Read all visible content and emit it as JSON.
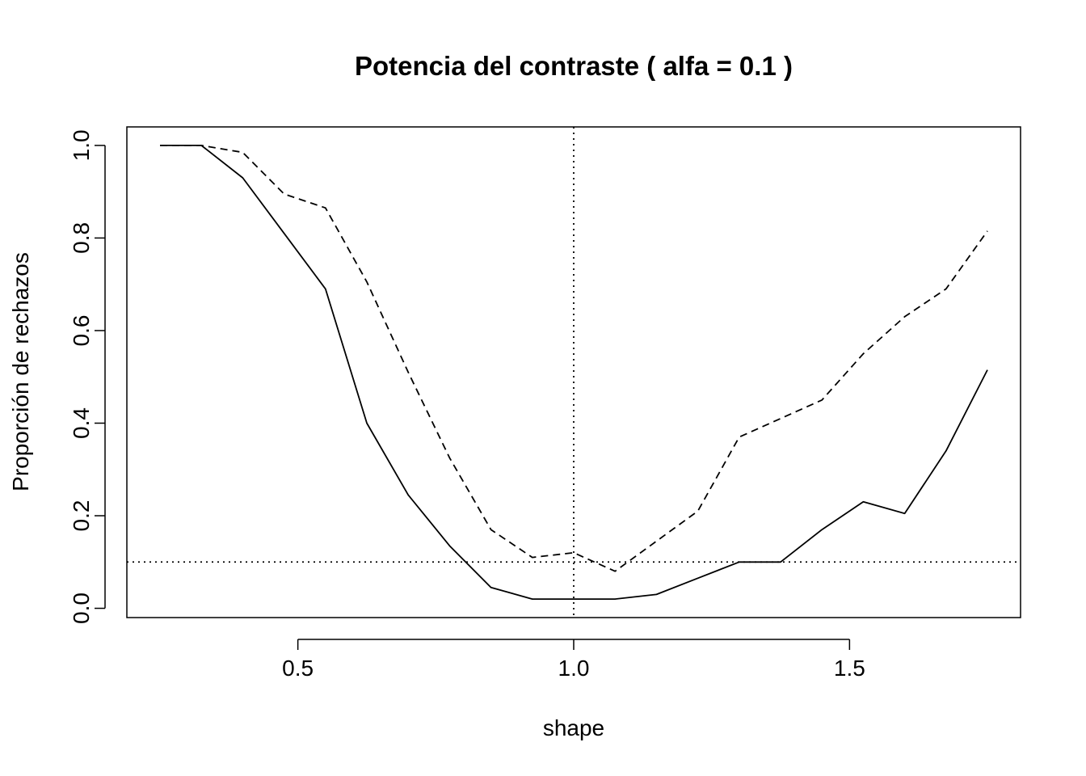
{
  "chart_data": {
    "type": "line",
    "title": "Potencia del contraste ( alfa = 0.1 )",
    "xlabel": "shape",
    "ylabel": "Proporción de rechazos",
    "xlim": [
      0.19,
      1.81
    ],
    "ylim": [
      -0.02,
      1.04
    ],
    "x_ticks": [
      0.5,
      1.0,
      1.5
    ],
    "x_tick_labels": [
      "0.5",
      "1.0",
      "1.5"
    ],
    "y_ticks": [
      0.0,
      0.2,
      0.4,
      0.6,
      0.8,
      1.0
    ],
    "y_tick_labels": [
      "0.0",
      "0.2",
      "0.4",
      "0.6",
      "0.8",
      "1.0"
    ],
    "grid": false,
    "x": [
      0.25,
      0.325,
      0.4,
      0.475,
      0.55,
      0.625,
      0.7,
      0.775,
      0.85,
      0.925,
      1.0,
      1.075,
      1.15,
      1.225,
      1.3,
      1.375,
      1.45,
      1.525,
      1.6,
      1.675,
      1.75
    ],
    "series": [
      {
        "style": "solid",
        "values": [
          1.0,
          1.0,
          0.93,
          0.81,
          0.69,
          0.4,
          0.245,
          0.135,
          0.045,
          0.02,
          0.02,
          0.02,
          0.03,
          0.065,
          0.1,
          0.1,
          0.17,
          0.23,
          0.205,
          0.34,
          0.515
        ]
      },
      {
        "style": "dashed",
        "values": [
          1.0,
          1.0,
          0.985,
          0.895,
          0.865,
          0.705,
          0.51,
          0.325,
          0.17,
          0.11,
          0.12,
          0.08,
          0.145,
          0.21,
          0.37,
          0.41,
          0.45,
          0.55,
          0.63,
          0.69,
          0.815
        ]
      }
    ],
    "reference_lines": [
      {
        "orientation": "horizontal",
        "value": 0.1,
        "style": "dotted"
      },
      {
        "orientation": "vertical",
        "value": 1.0,
        "style": "dotted"
      }
    ]
  }
}
